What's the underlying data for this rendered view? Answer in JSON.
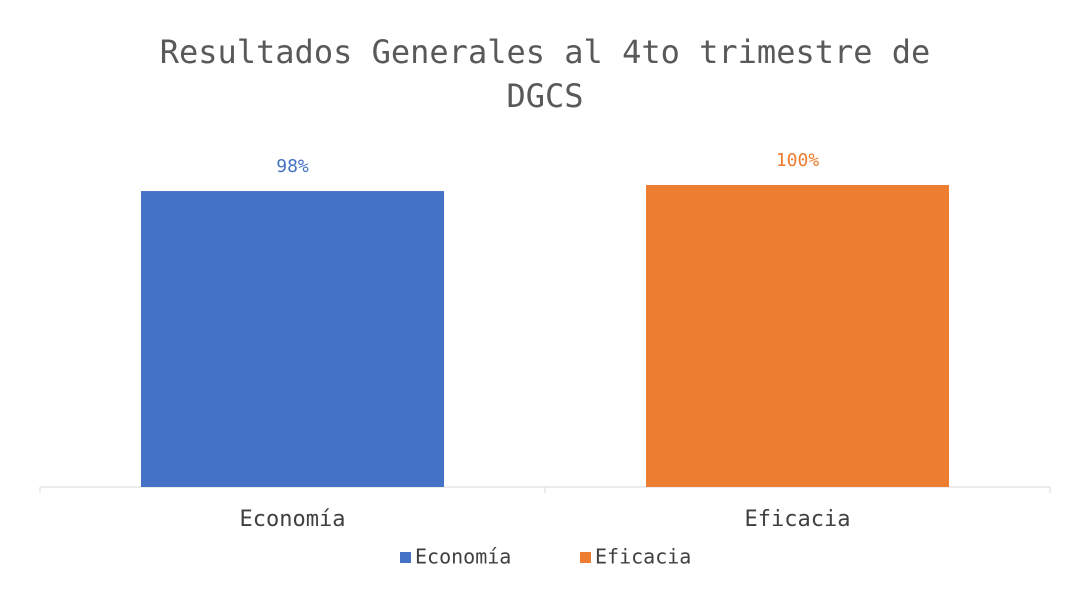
{
  "chart_data": {
    "type": "bar",
    "title": "Resultados Generales al 4to trimestre de DGCS",
    "categories": [
      "Economía",
      "Eficacia"
    ],
    "series": [
      {
        "name": "Economía",
        "color": "#4472c4",
        "values": [
          98,
          null
        ],
        "value_labels": [
          "98%",
          null
        ]
      },
      {
        "name": "Eficacia",
        "color": "#ed7d31",
        "values": [
          null,
          100
        ],
        "value_labels": [
          null,
          "100%"
        ]
      }
    ],
    "ylim": [
      0,
      100
    ]
  }
}
